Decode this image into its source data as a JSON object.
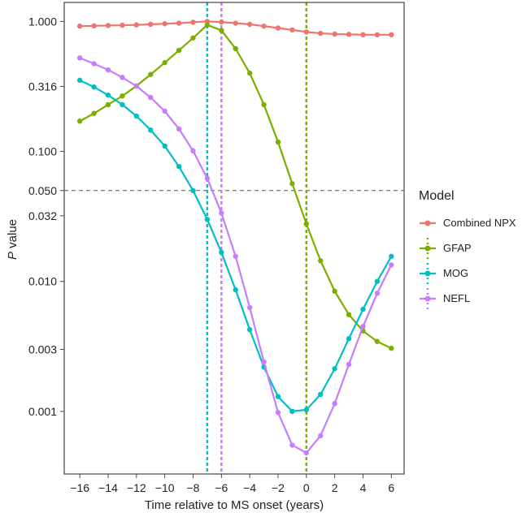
{
  "chart_data": {
    "type": "line",
    "xlabel": "Time relative to MS onset (years)",
    "ylabel_italic": "P",
    "ylabel_rest": " value",
    "yscale": "log",
    "xlim": [
      -17.1,
      6.9
    ],
    "ylim": [
      0.00033,
      1.4
    ],
    "x_ticks": [
      -16,
      -14,
      -12,
      -10,
      -8,
      -6,
      -4,
      -2,
      0,
      2,
      4,
      6
    ],
    "x_tick_labels": [
      "−16",
      "−14",
      "−12",
      "−10",
      "−8",
      "−6",
      "−4",
      "−2",
      "0",
      "2",
      "4",
      "6"
    ],
    "y_ticks": [
      1.0,
      0.316,
      0.1,
      0.05,
      0.032,
      0.01,
      0.003,
      0.001
    ],
    "y_tick_labels": [
      "1.000",
      "0.316",
      "0.100",
      "0.050",
      "0.032",
      "0.010",
      "0.003",
      "0.001"
    ],
    "grid": false,
    "threshold_line": {
      "y": 0.05,
      "color": "#555555",
      "style": "dashed"
    },
    "x": [
      -16,
      -15,
      -14,
      -13,
      -12,
      -11,
      -10,
      -9,
      -8,
      -7,
      -6,
      -5,
      -4,
      -3,
      -2,
      -1,
      0,
      1,
      2,
      3,
      4,
      5,
      6
    ],
    "series": [
      {
        "name": "Combined NPX",
        "color": "#F0746E",
        "onset_line": null,
        "values": [
          0.92,
          0.925,
          0.93,
          0.935,
          0.94,
          0.95,
          0.96,
          0.97,
          0.985,
          1.0,
          0.99,
          0.97,
          0.95,
          0.92,
          0.89,
          0.86,
          0.83,
          0.81,
          0.8,
          0.795,
          0.79,
          0.79,
          0.79
        ]
      },
      {
        "name": "GFAP",
        "color": "#7CAE00",
        "onset_line": 0,
        "values": [
          0.171,
          0.196,
          0.229,
          0.267,
          0.319,
          0.391,
          0.482,
          0.599,
          0.746,
          0.94,
          0.853,
          0.617,
          0.4,
          0.229,
          0.118,
          0.0565,
          0.0277,
          0.0144,
          0.0084,
          0.00555,
          0.00416,
          0.00345,
          0.00306
        ]
      },
      {
        "name": "MOG",
        "color": "#00BFC4",
        "onset_line": -7,
        "values": [
          0.353,
          0.313,
          0.271,
          0.229,
          0.187,
          0.146,
          0.11,
          0.0765,
          0.0499,
          0.03,
          0.0167,
          0.00863,
          0.00426,
          0.00219,
          0.0013,
          0.001,
          0.00103,
          0.00135,
          0.00213,
          0.00363,
          0.0061,
          0.01,
          0.0156
        ]
      },
      {
        "name": "NEFL",
        "color": "#C77CFF",
        "onset_line": -6,
        "values": [
          0.524,
          0.473,
          0.424,
          0.371,
          0.318,
          0.26,
          0.204,
          0.149,
          0.101,
          0.062,
          0.0335,
          0.0156,
          0.0063,
          0.0024,
          0.00098,
          0.00055,
          0.00048,
          0.00065,
          0.00115,
          0.0023,
          0.0045,
          0.0081,
          0.0134
        ]
      }
    ],
    "legend": {
      "title": "Model",
      "placement": "right"
    }
  }
}
